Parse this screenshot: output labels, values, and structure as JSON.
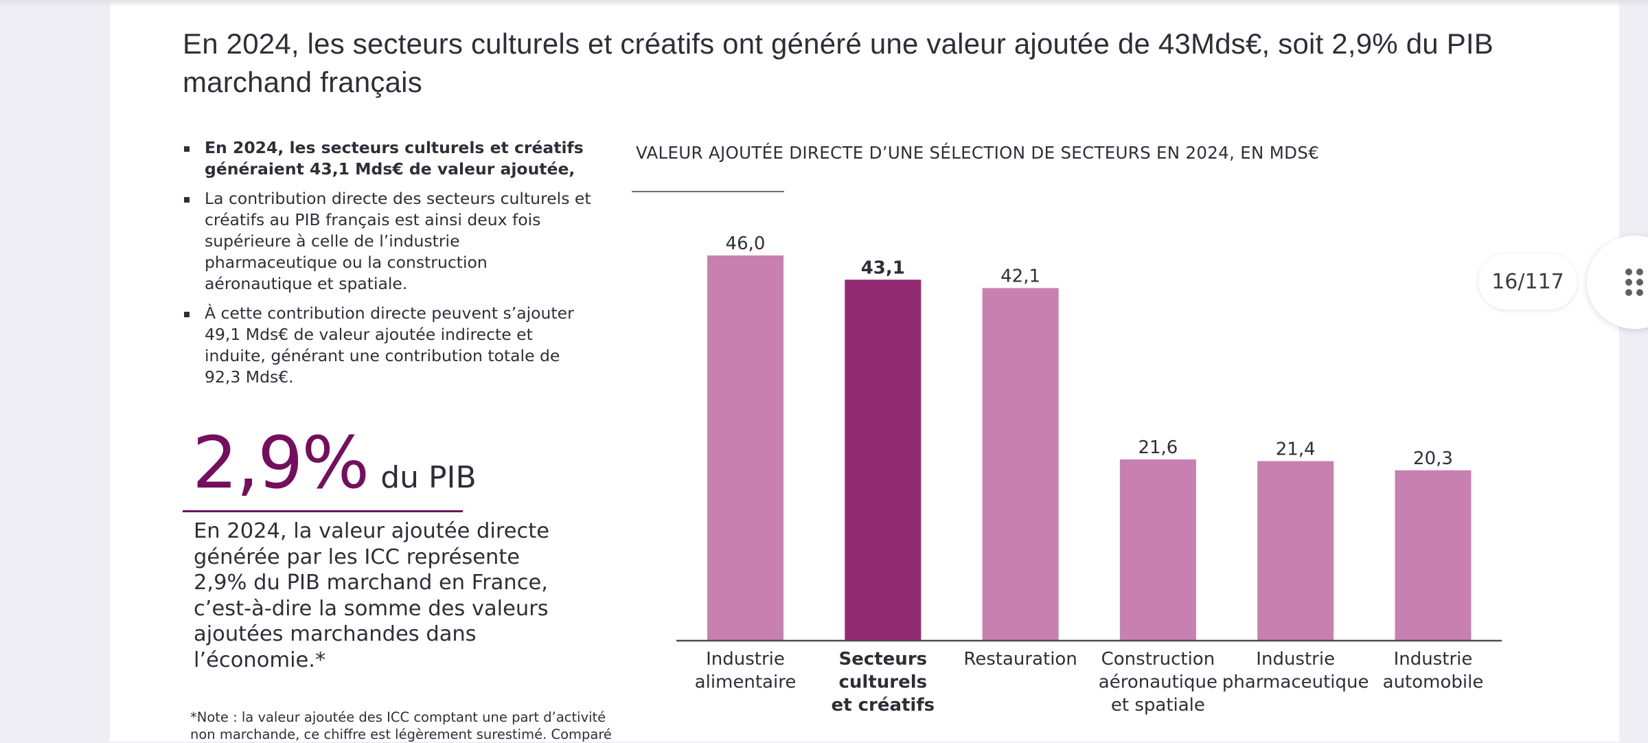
{
  "page": {
    "title": "En 2024, les secteurs culturels et créatifs ont généré une valeur ajoutée de 43Mds€, soit 2,9% du PIB marchand français",
    "bullets": [
      {
        "text": "En 2024, les secteurs culturels et créatifs généraient 43,1 Mds€ de valeur ajoutée,",
        "bold": true
      },
      {
        "text": "La contribution directe des secteurs culturels et créatifs au PIB français est ainsi deux fois supérieure à celle de l’industrie pharmaceutique ou la construction aéronautique et spatiale.",
        "bold": false
      },
      {
        "text": "À cette contribution directe peuvent s’ajouter 49,1 Mds€ de valeur ajoutée indirecte et induite, générant une contribution totale de 92,3 Mds€.",
        "bold": false
      }
    ],
    "stat": {
      "value": "2,9%",
      "unit": "du PIB",
      "description": "En 2024, la valeur ajoutée directe générée par les ICC représente 2,9% du PIB marchand en France, c’est-à-dire la somme des valeurs ajoutées marchandes dans l’économie.*"
    },
    "note": "*Note : la valeur ajoutée des ICC comptant une part d’activité non marchande, ce chiffre est légèrement surestimé. Comparé"
  },
  "viewer": {
    "page_indicator": "16/117",
    "menu_icon": "grid-dots-icon"
  },
  "colors": {
    "accent": "#750e5c",
    "bar_default": "#c880b0",
    "bar_highlight": "#922a72",
    "text": "#2e2e38",
    "background": "#f0eef5"
  },
  "chart_data": {
    "type": "bar",
    "title": "VALEUR AJOUTÉE DIRECTE D’UNE SÉLECTION DE SECTEURS EN 2024, EN MDS€",
    "xlabel": "",
    "ylabel": "",
    "ylim": [
      0,
      46
    ],
    "grid": false,
    "categories": [
      [
        "Industrie",
        "alimentaire"
      ],
      [
        "Secteurs",
        "culturels",
        "et créatifs"
      ],
      [
        "Restauration"
      ],
      [
        "Construction",
        "aéronautique",
        "et spatiale"
      ],
      [
        "Industrie",
        "pharmaceutique"
      ],
      [
        "Industrie",
        "automobile"
      ]
    ],
    "values": [
      46.0,
      43.1,
      42.1,
      21.6,
      21.4,
      20.3
    ],
    "labels": [
      "46,0",
      "43,1",
      "42,1",
      "21,6",
      "21,4",
      "20,3"
    ],
    "highlight_index": 1
  }
}
